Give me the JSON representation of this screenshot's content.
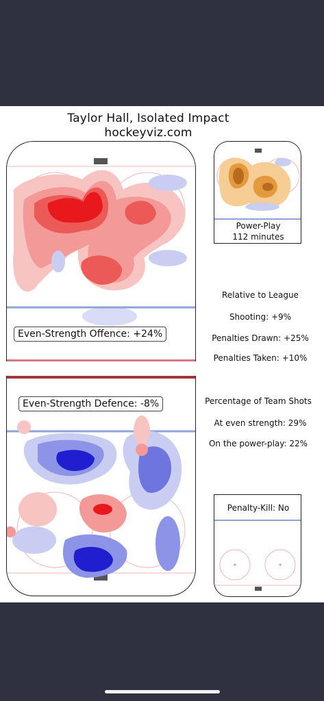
{
  "header": {
    "title": "Taylor Hall, Isolated Impact",
    "subtitle": "hockeyviz.com"
  },
  "offence": {
    "label": "Even-Strength Offence: +24%"
  },
  "defence": {
    "label": "Even-Strength Defence: -8%"
  },
  "power_play": {
    "line1": "Power-Play",
    "line2": "112 minutes"
  },
  "penalty_kill": {
    "label": "Penalty-Kill: No"
  },
  "relative": {
    "heading": "Relative to League",
    "shooting": "Shooting: +9%",
    "drawn": "Penalties Drawn: +25%",
    "taken": "Penalties Taken: +10%"
  },
  "team_shots": {
    "heading": "Percentage of Team Shots",
    "even": "At even strength: 29%",
    "pp": "On the power-play: 22%"
  },
  "colors": {
    "offence_red": "#e8191c",
    "defence_blue": "#1f1fd0",
    "pp_orange": "#e29a3c",
    "blue_line": "#8ea4d8",
    "goal_line": "#f2b7b7"
  }
}
